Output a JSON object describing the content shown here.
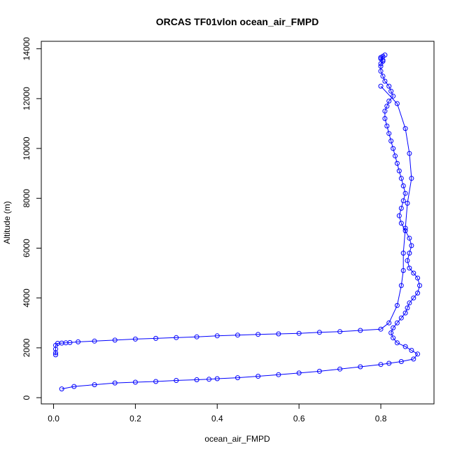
{
  "chart_data": {
    "type": "scatter",
    "title": "ORCAS TF01vlon ocean_air_FMPD",
    "xlabel": "ocean_air_FMPD",
    "ylabel": "Altitude (m)",
    "xlim": [
      -0.03,
      0.93
    ],
    "ylim": [
      -250,
      14300
    ],
    "x_ticks": [
      0.0,
      0.2,
      0.4,
      0.6,
      0.8
    ],
    "x_tick_labels": [
      "0.0",
      "0.2",
      "0.4",
      "0.6",
      "0.8"
    ],
    "y_ticks": [
      0,
      2000,
      4000,
      6000,
      8000,
      10000,
      12000,
      14000
    ],
    "y_tick_labels": [
      "0",
      "2000",
      "4000",
      "6000",
      "8000",
      "10000",
      "12000",
      "14000"
    ],
    "grid": false,
    "legend": "none",
    "marker": "open-circle",
    "connected": true,
    "color": "#0000ff",
    "series": [
      {
        "x": [
          0.02,
          0.05,
          0.1,
          0.15,
          0.2,
          0.25,
          0.3,
          0.35,
          0.38,
          0.4,
          0.45,
          0.5,
          0.55,
          0.6,
          0.65,
          0.7,
          0.75,
          0.8,
          0.82,
          0.85,
          0.88,
          0.89,
          0.875,
          0.86,
          0.84,
          0.83,
          0.825,
          0.83,
          0.84,
          0.85,
          0.86,
          0.865,
          0.87,
          0.88,
          0.89,
          0.895,
          0.89,
          0.88,
          0.87,
          0.865,
          0.87,
          0.875,
          0.87,
          0.86,
          0.85,
          0.845,
          0.85,
          0.855,
          0.86,
          0.855,
          0.85,
          0.845,
          0.84,
          0.835,
          0.83,
          0.825,
          0.82,
          0.815,
          0.81,
          0.81,
          0.815,
          0.82,
          0.83,
          0.825,
          0.82,
          0.81,
          0.805,
          0.8,
          0.8,
          0.8,
          0.805,
          0.805,
          0.8,
          0.8,
          0.805,
          0.81
        ],
        "y": [
          350,
          450,
          520,
          590,
          620,
          650,
          690,
          720,
          740,
          760,
          800,
          860,
          920,
          990,
          1060,
          1150,
          1240,
          1330,
          1380,
          1450,
          1550,
          1750,
          1900,
          2050,
          2200,
          2400,
          2600,
          2800,
          3000,
          3200,
          3400,
          3600,
          3800,
          4000,
          4200,
          4500,
          4800,
          5000,
          5200,
          5500,
          5800,
          6100,
          6400,
          6700,
          7000,
          7300,
          7600,
          7900,
          8200,
          8500,
          8800,
          9100,
          9400,
          9700,
          10000,
          10300,
          10600,
          10900,
          11200,
          11500,
          11700,
          11900,
          12100,
          12300,
          12500,
          12700,
          12900,
          13100,
          13300,
          13400,
          13500,
          13550,
          13600,
          13650,
          13700,
          13750
        ]
      },
      {
        "x": [
          0.8,
          0.84,
          0.86,
          0.87,
          0.875,
          0.865,
          0.86,
          0.855,
          0.855,
          0.85,
          0.84,
          0.82,
          0.8,
          0.75,
          0.7,
          0.65,
          0.6,
          0.55,
          0.5,
          0.45,
          0.4,
          0.35,
          0.3,
          0.25,
          0.2,
          0.15,
          0.1,
          0.06,
          0.04,
          0.03,
          0.02,
          0.01,
          0.005,
          0.005,
          0.005,
          0.005
        ],
        "y": [
          12500,
          11800,
          10800,
          9800,
          8800,
          7800,
          6800,
          5800,
          5100,
          4500,
          3700,
          3000,
          2750,
          2700,
          2650,
          2620,
          2580,
          2560,
          2540,
          2510,
          2480,
          2440,
          2410,
          2380,
          2350,
          2310,
          2270,
          2240,
          2210,
          2200,
          2190,
          2180,
          2100,
          1950,
          1800,
          1720
        ]
      }
    ]
  }
}
